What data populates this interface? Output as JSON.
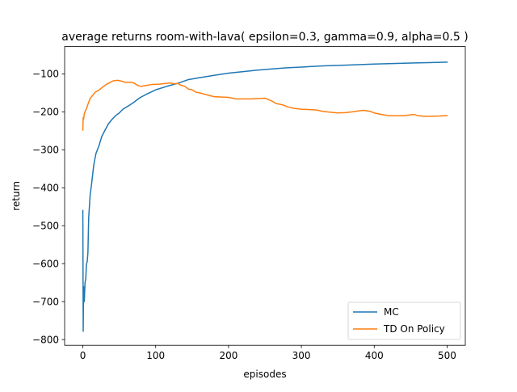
{
  "chart_data": {
    "type": "line",
    "title": "average returns room-with-lava( epsilon=0.3, gamma=0.9, alpha=0.5 )",
    "xlabel": "episodes",
    "ylabel": "return",
    "xlim": [
      -25,
      525
    ],
    "ylim": [
      -815,
      -28
    ],
    "xticks": [
      0,
      100,
      200,
      300,
      400,
      500
    ],
    "yticks": [
      -800,
      -700,
      -600,
      -500,
      -400,
      -300,
      -200,
      -100
    ],
    "xtick_labels": [
      "0",
      "100",
      "200",
      "300",
      "400",
      "500"
    ],
    "ytick_labels": [
      "−800",
      "−700",
      "−600",
      "−500",
      "−400",
      "−300",
      "−200",
      "−100"
    ],
    "grid": false,
    "legend_position": "lower right",
    "series": [
      {
        "name": "MC",
        "color": "#1f77b4",
        "points": [
          [
            0,
            -460
          ],
          [
            0.5,
            -778
          ],
          [
            1,
            -660
          ],
          [
            2,
            -700
          ],
          [
            3,
            -650
          ],
          [
            4,
            -640
          ],
          [
            5,
            -600
          ],
          [
            6,
            -595
          ],
          [
            7,
            -570
          ],
          [
            8,
            -480
          ],
          [
            10,
            -420
          ],
          [
            12,
            -390
          ],
          [
            15,
            -340
          ],
          [
            18,
            -310
          ],
          [
            22,
            -290
          ],
          [
            26,
            -265
          ],
          [
            30,
            -250
          ],
          [
            35,
            -232
          ],
          [
            40,
            -220
          ],
          [
            45,
            -210
          ],
          [
            50,
            -203
          ],
          [
            55,
            -193
          ],
          [
            62,
            -185
          ],
          [
            70,
            -175
          ],
          [
            78,
            -163
          ],
          [
            88,
            -153
          ],
          [
            100,
            -142
          ],
          [
            115,
            -133
          ],
          [
            130,
            -125
          ],
          [
            145,
            -115
          ],
          [
            160,
            -110
          ],
          [
            180,
            -104
          ],
          [
            200,
            -98
          ],
          [
            220,
            -94
          ],
          [
            240,
            -90
          ],
          [
            260,
            -87
          ],
          [
            280,
            -84
          ],
          [
            300,
            -82
          ],
          [
            330,
            -79
          ],
          [
            360,
            -77
          ],
          [
            400,
            -74
          ],
          [
            440,
            -72
          ],
          [
            480,
            -70
          ],
          [
            500,
            -69
          ]
        ]
      },
      {
        "name": "TD On Policy",
        "color": "#ff7f0e",
        "points": [
          [
            0,
            -248
          ],
          [
            0.5,
            -215
          ],
          [
            1,
            -220
          ],
          [
            2,
            -205
          ],
          [
            3,
            -200
          ],
          [
            4,
            -195
          ],
          [
            5,
            -192
          ],
          [
            7,
            -180
          ],
          [
            10,
            -165
          ],
          [
            13,
            -158
          ],
          [
            17,
            -148
          ],
          [
            22,
            -143
          ],
          [
            27,
            -135
          ],
          [
            32,
            -128
          ],
          [
            37,
            -123
          ],
          [
            42,
            -118
          ],
          [
            48,
            -117
          ],
          [
            53,
            -119
          ],
          [
            58,
            -122
          ],
          [
            65,
            -122
          ],
          [
            70,
            -124
          ],
          [
            75,
            -130
          ],
          [
            80,
            -133
          ],
          [
            88,
            -130
          ],
          [
            95,
            -128
          ],
          [
            105,
            -127
          ],
          [
            115,
            -125
          ],
          [
            120,
            -124
          ],
          [
            125,
            -126
          ],
          [
            130,
            -125
          ],
          [
            135,
            -130
          ],
          [
            140,
            -133
          ],
          [
            145,
            -140
          ],
          [
            150,
            -142
          ],
          [
            155,
            -148
          ],
          [
            160,
            -150
          ],
          [
            170,
            -155
          ],
          [
            180,
            -160
          ],
          [
            200,
            -162
          ],
          [
            210,
            -166
          ],
          [
            230,
            -166
          ],
          [
            250,
            -164
          ],
          [
            255,
            -168
          ],
          [
            260,
            -172
          ],
          [
            265,
            -178
          ],
          [
            275,
            -182
          ],
          [
            280,
            -186
          ],
          [
            290,
            -191
          ],
          [
            300,
            -193
          ],
          [
            320,
            -195
          ],
          [
            330,
            -199
          ],
          [
            340,
            -201
          ],
          [
            350,
            -203
          ],
          [
            360,
            -202
          ],
          [
            370,
            -200
          ],
          [
            380,
            -197
          ],
          [
            385,
            -196
          ],
          [
            395,
            -199
          ],
          [
            400,
            -203
          ],
          [
            410,
            -207
          ],
          [
            420,
            -210
          ],
          [
            440,
            -210
          ],
          [
            450,
            -208
          ],
          [
            455,
            -207
          ],
          [
            460,
            -210
          ],
          [
            470,
            -212
          ],
          [
            490,
            -211
          ],
          [
            500,
            -210
          ]
        ]
      }
    ]
  }
}
